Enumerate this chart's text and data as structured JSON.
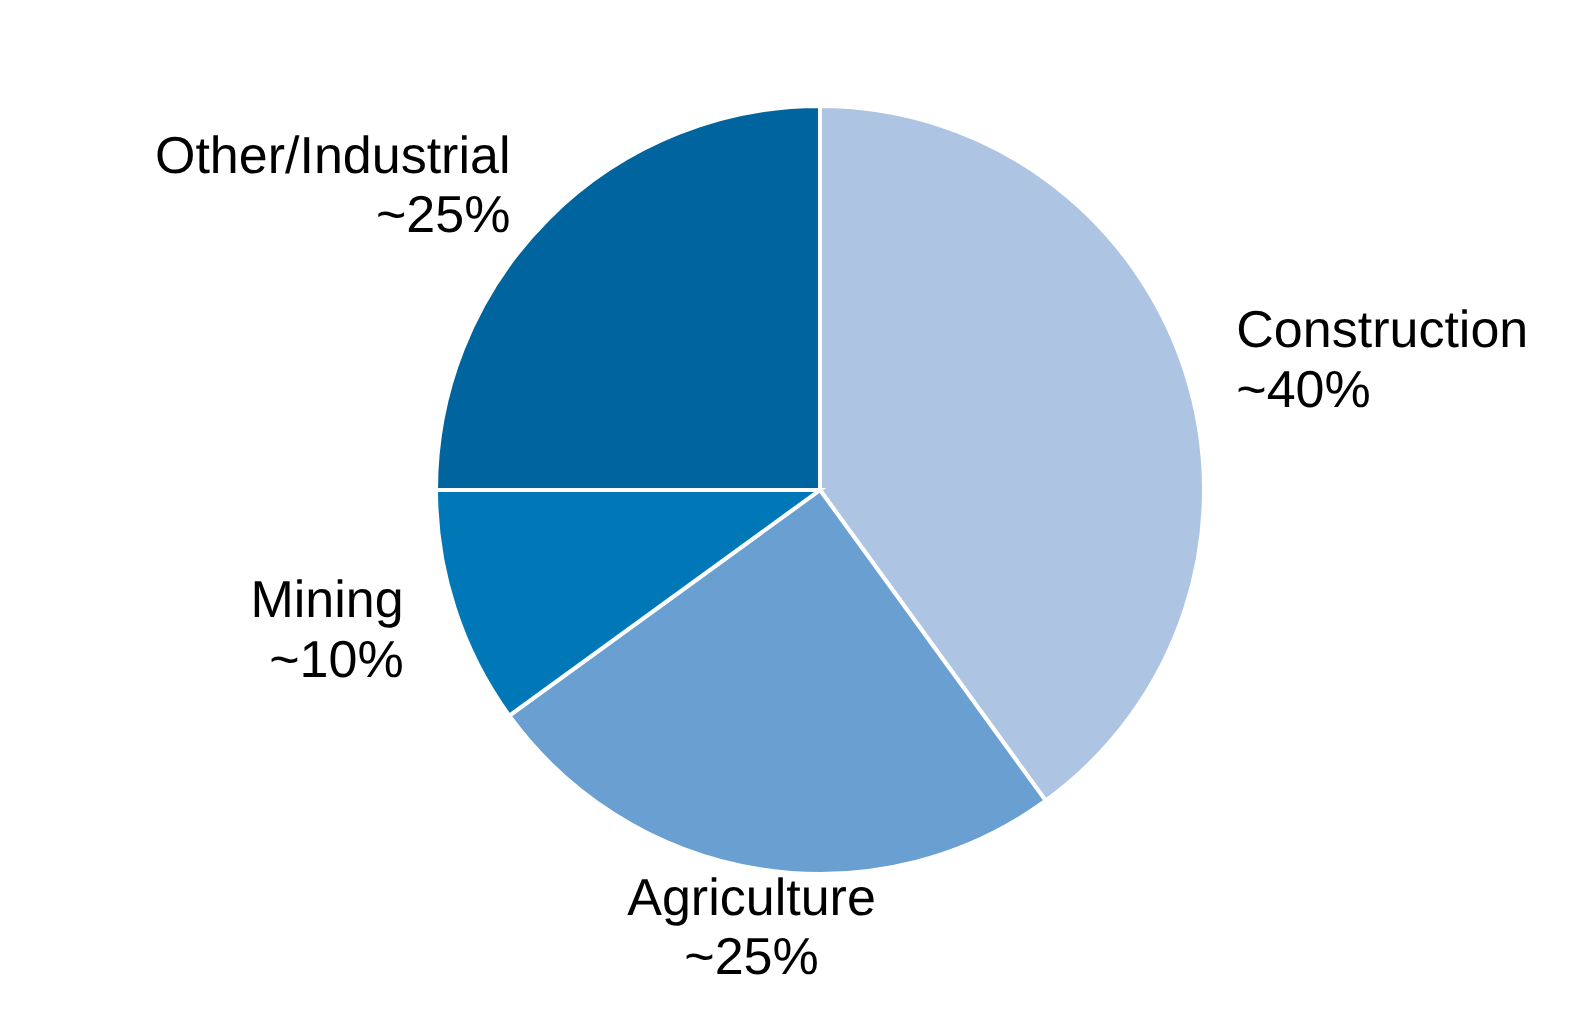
{
  "chart_data": {
    "type": "pie",
    "categories": [
      "Construction",
      "Agriculture",
      "Mining",
      "Other/Industrial"
    ],
    "values": [
      40,
      25,
      10,
      25
    ],
    "value_labels": [
      "~40%",
      "~25%",
      "~10%",
      "~25%"
    ],
    "colors": [
      "#adc4e3",
      "#6a9fd2",
      "#0078b8",
      "#00649e"
    ]
  }
}
